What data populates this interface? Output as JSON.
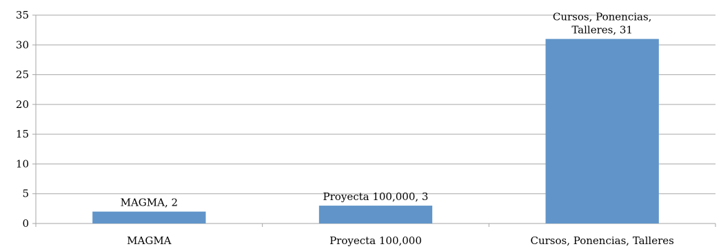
{
  "chart_data": {
    "type": "bar",
    "title": "",
    "xlabel": "",
    "ylabel": "",
    "categories": [
      "MAGMA",
      "Proyecta 100,000",
      "Cursos, Ponencias, Talleres"
    ],
    "values": [
      2,
      3,
      31
    ],
    "data_labels": [
      [
        "MAGMA, 2"
      ],
      [
        "Proyecta 100,000, 3"
      ],
      [
        "Cursos, Ponencias,",
        "Talleres, 31"
      ]
    ],
    "ylim": [
      0,
      35
    ],
    "yticks": [
      0,
      5,
      10,
      15,
      20,
      25,
      30,
      35
    ],
    "grid": true,
    "legend": "none",
    "colors": {
      "bar": "#6195c9",
      "grid": "#a6a6a6",
      "axis": "#a6a6a6"
    }
  }
}
